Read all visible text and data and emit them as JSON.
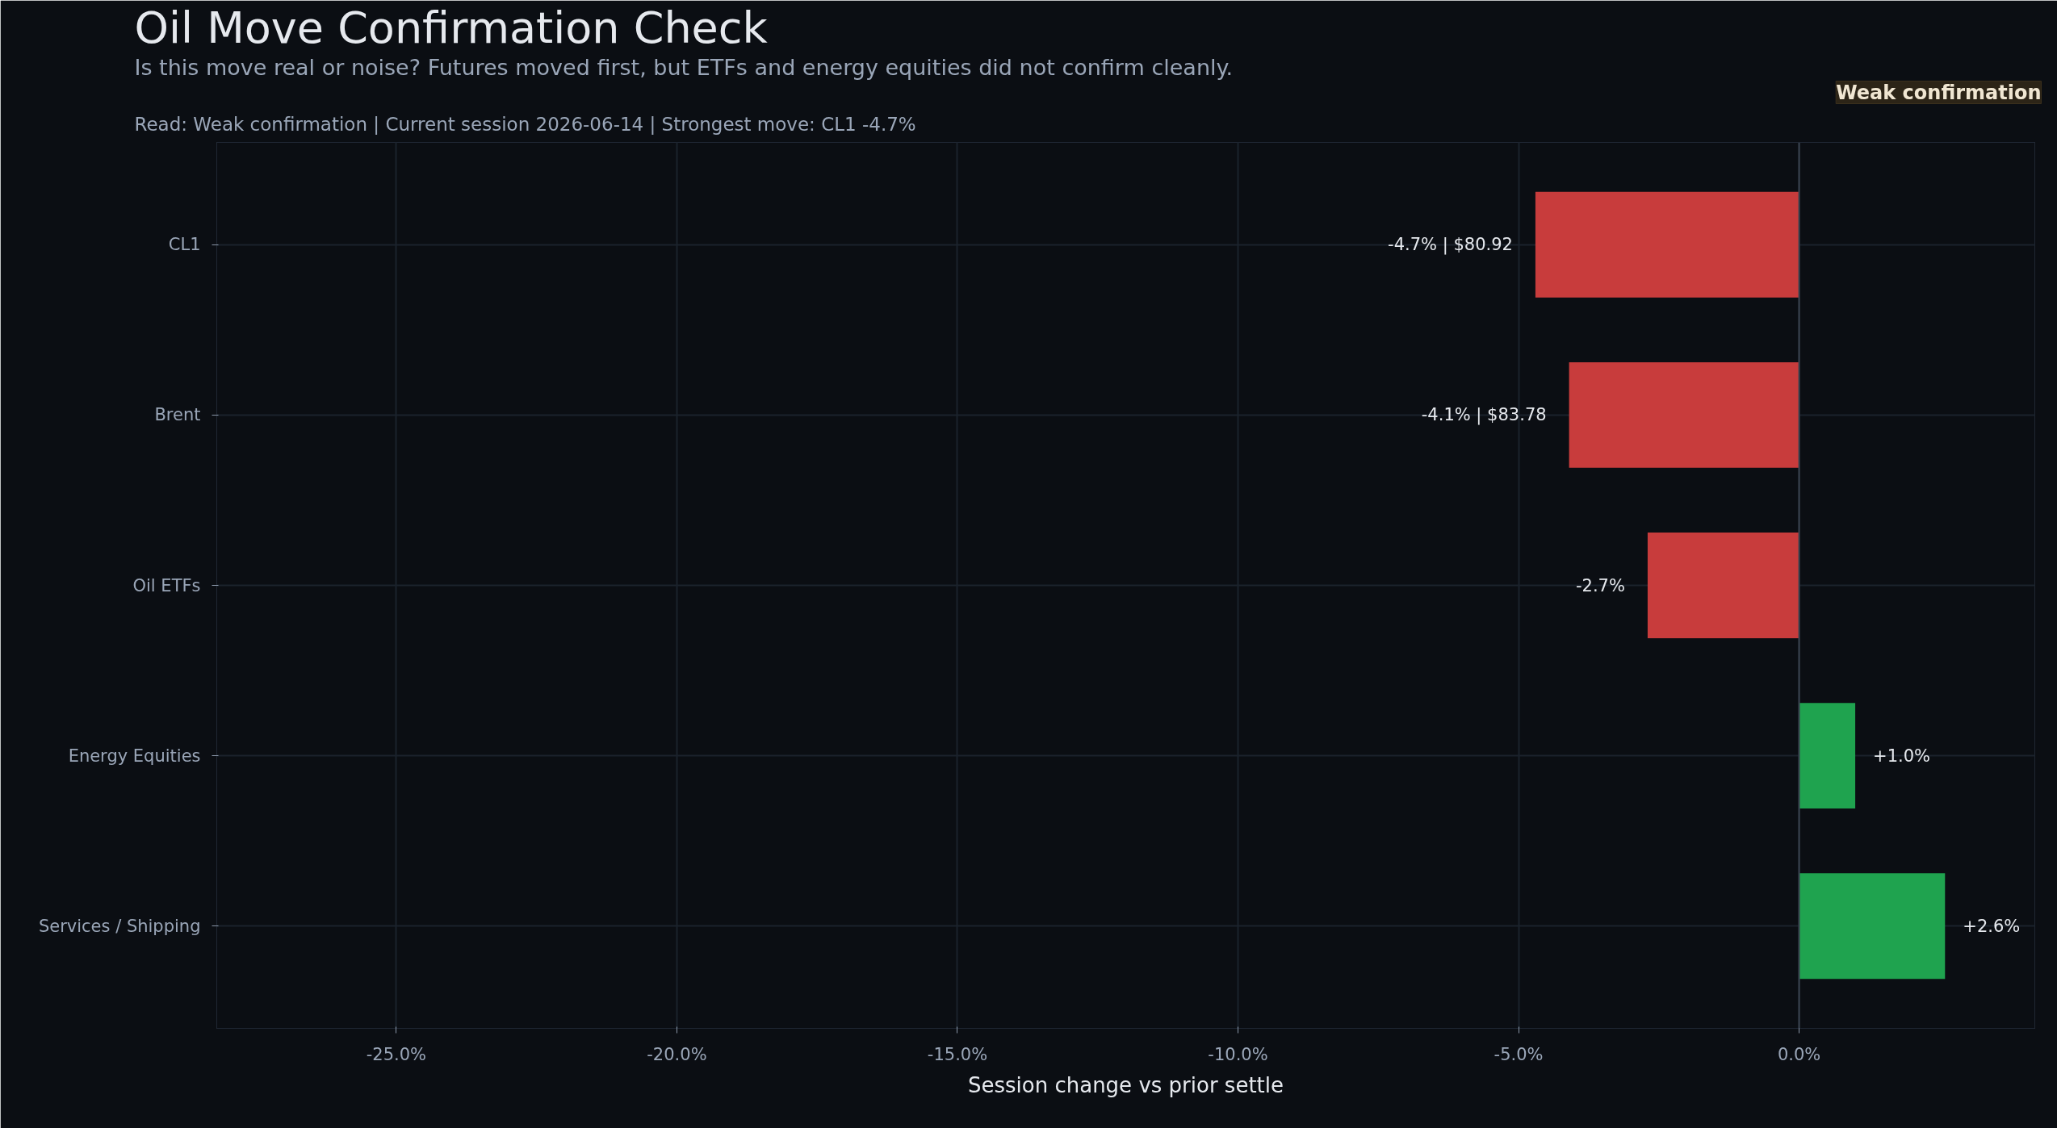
{
  "chart_data": {
    "type": "bar",
    "orientation": "horizontal",
    "title": "Oil Move Confirmation Check",
    "subtitle": "Is this move real or noise? Futures moved first, but ETFs and energy equities did not confirm cleanly.",
    "annotations": [
      "Read: Weak confirmation  |  Current session 2026-06-14  |  Strongest move: CL1 -4.7%",
      "Weak confirmation"
    ],
    "xlabel": "Session change vs prior settle",
    "categories": [
      "CL1",
      "Brent",
      "Oil ETFs",
      "Energy Equities",
      "Services / Shipping"
    ],
    "values": [
      -4.7,
      -4.1,
      -2.7,
      1.0,
      2.6
    ],
    "colors": [
      "#c83c3c",
      "#c83c3c",
      "#c83c3c",
      "#1fa34f",
      "#1fa34f"
    ],
    "value_labels": [
      "-4.7% | $80.92",
      "-4.1% | $83.78",
      "-2.7%",
      "+1.0%",
      "+2.6%"
    ],
    "xlim": [
      -28.2,
      4.2
    ],
    "xticks": [
      {
        "value": -25,
        "label": "-25.0%"
      },
      {
        "value": -20,
        "label": "-20.0%"
      },
      {
        "value": -15,
        "label": "-15.0%"
      },
      {
        "value": -10,
        "label": "-10.0%"
      },
      {
        "value": -5,
        "label": "-5.0%"
      },
      {
        "value": 0,
        "label": "0.0%"
      }
    ],
    "ref_lines": [
      {
        "axis": "x",
        "value": 0,
        "color": "#3a4350"
      }
    ],
    "grid": true
  }
}
